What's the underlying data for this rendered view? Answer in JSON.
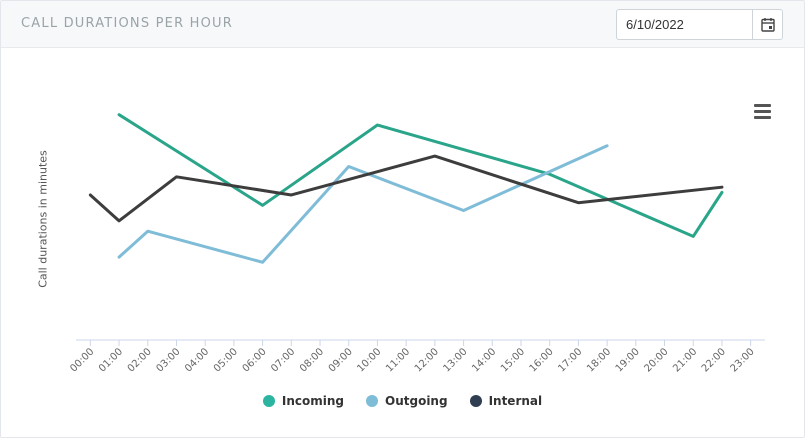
{
  "header": {
    "title": "CALL DURATIONS PER HOUR",
    "date_value": "6/10/2022",
    "calendar_icon": "calendar-icon",
    "menu_icon": "hamburger-menu-icon"
  },
  "chart_data": {
    "type": "line",
    "title": "",
    "xlabel": "",
    "ylabel": "Call durations in minutes",
    "categories": [
      "00:00",
      "01:00",
      "02:00",
      "03:00",
      "04:00",
      "05:00",
      "06:00",
      "07:00",
      "08:00",
      "09:00",
      "10:00",
      "11:00",
      "12:00",
      "13:00",
      "14:00",
      "15:00",
      "16:00",
      "17:00",
      "18:00",
      "19:00",
      "20:00",
      "21:00",
      "22:00",
      "23:00"
    ],
    "ylim": [
      0,
      10
    ],
    "grid": false,
    "legend_position": "bottom",
    "series": [
      {
        "name": "Incoming",
        "color": "#2aa58a",
        "values": [
          null,
          8.7,
          null,
          null,
          null,
          null,
          5.2,
          null,
          null,
          null,
          8.3,
          null,
          null,
          null,
          null,
          null,
          6.4,
          null,
          null,
          null,
          null,
          4.0,
          5.7,
          null
        ]
      },
      {
        "name": "Outgoing",
        "color": "#7fbcd7",
        "values": [
          null,
          3.2,
          4.2,
          null,
          null,
          null,
          3.0,
          null,
          null,
          6.7,
          null,
          null,
          null,
          5.0,
          null,
          null,
          null,
          null,
          7.5,
          null,
          null,
          null,
          null,
          null
        ]
      },
      {
        "name": "Internal",
        "color": "#3d3d3d",
        "values": [
          5.6,
          4.6,
          null,
          6.3,
          null,
          null,
          null,
          5.6,
          null,
          null,
          6.5,
          null,
          7.1,
          null,
          null,
          null,
          null,
          5.3,
          null,
          null,
          null,
          null,
          5.9,
          null
        ]
      }
    ]
  }
}
